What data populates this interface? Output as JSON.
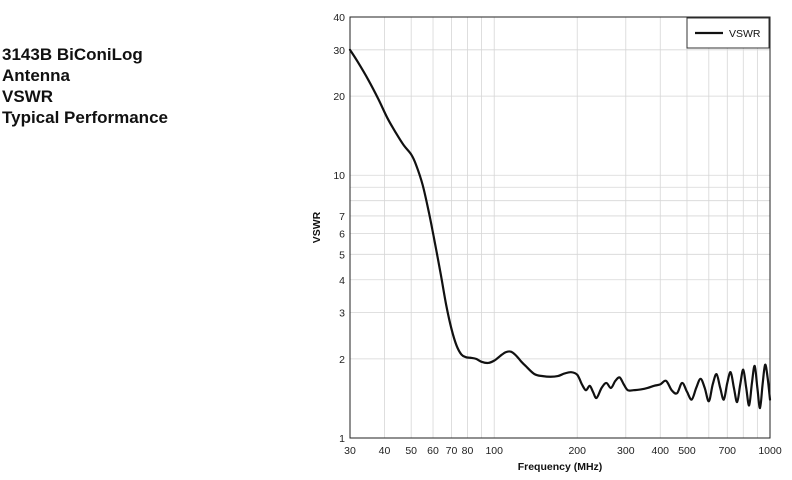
{
  "title_lines": [
    "3143B BiConiLog",
    "Antenna",
    "VSWR",
    "Typical Performance"
  ],
  "chart_data": {
    "type": "line",
    "xlabel": "Frequency (MHz)",
    "ylabel": "VSWR",
    "xscale": "log",
    "yscale": "log",
    "xlim": [
      30,
      1000
    ],
    "ylim": [
      1,
      40
    ],
    "xticks": [
      30,
      40,
      50,
      60,
      70,
      80,
      100,
      200,
      300,
      400,
      500,
      700,
      1000
    ],
    "yticks": [
      1,
      2,
      3,
      4,
      5,
      6,
      7,
      10,
      20,
      30,
      40
    ],
    "grid": true,
    "legend_position": "top-right",
    "line_color": "#111111",
    "series": [
      {
        "name": "VSWR",
        "x": [
          30,
          32,
          35,
          38,
          41,
          44,
          47,
          50,
          52,
          55,
          58,
          61,
          64,
          67,
          70,
          73,
          76,
          79,
          82,
          86,
          90,
          95,
          100,
          105,
          110,
          115,
          120,
          125,
          130,
          140,
          150,
          160,
          170,
          180,
          190,
          200,
          208,
          215,
          222,
          228,
          235,
          245,
          255,
          265,
          275,
          285,
          295,
          305,
          320,
          340,
          360,
          380,
          400,
          420,
          440,
          460,
          480,
          500,
          520,
          540,
          560,
          580,
          600,
          620,
          640,
          660,
          680,
          700,
          720,
          740,
          760,
          780,
          800,
          820,
          840,
          860,
          880,
          900,
          920,
          940,
          960,
          980,
          1000
        ],
        "y": [
          30,
          27,
          23,
          19.5,
          16.5,
          14.5,
          13,
          12,
          11,
          9.2,
          7.2,
          5.5,
          4.2,
          3.2,
          2.6,
          2.25,
          2.08,
          2.03,
          2.02,
          2.0,
          1.95,
          1.93,
          1.97,
          2.05,
          2.12,
          2.13,
          2.06,
          1.96,
          1.88,
          1.75,
          1.72,
          1.71,
          1.72,
          1.76,
          1.78,
          1.74,
          1.6,
          1.52,
          1.58,
          1.5,
          1.42,
          1.55,
          1.62,
          1.55,
          1.65,
          1.7,
          1.6,
          1.52,
          1.52,
          1.53,
          1.55,
          1.58,
          1.6,
          1.65,
          1.52,
          1.48,
          1.62,
          1.5,
          1.4,
          1.55,
          1.68,
          1.55,
          1.38,
          1.6,
          1.75,
          1.55,
          1.4,
          1.62,
          1.78,
          1.55,
          1.37,
          1.6,
          1.82,
          1.55,
          1.33,
          1.62,
          1.88,
          1.55,
          1.3,
          1.6,
          1.9,
          1.7,
          1.4
        ]
      }
    ]
  }
}
